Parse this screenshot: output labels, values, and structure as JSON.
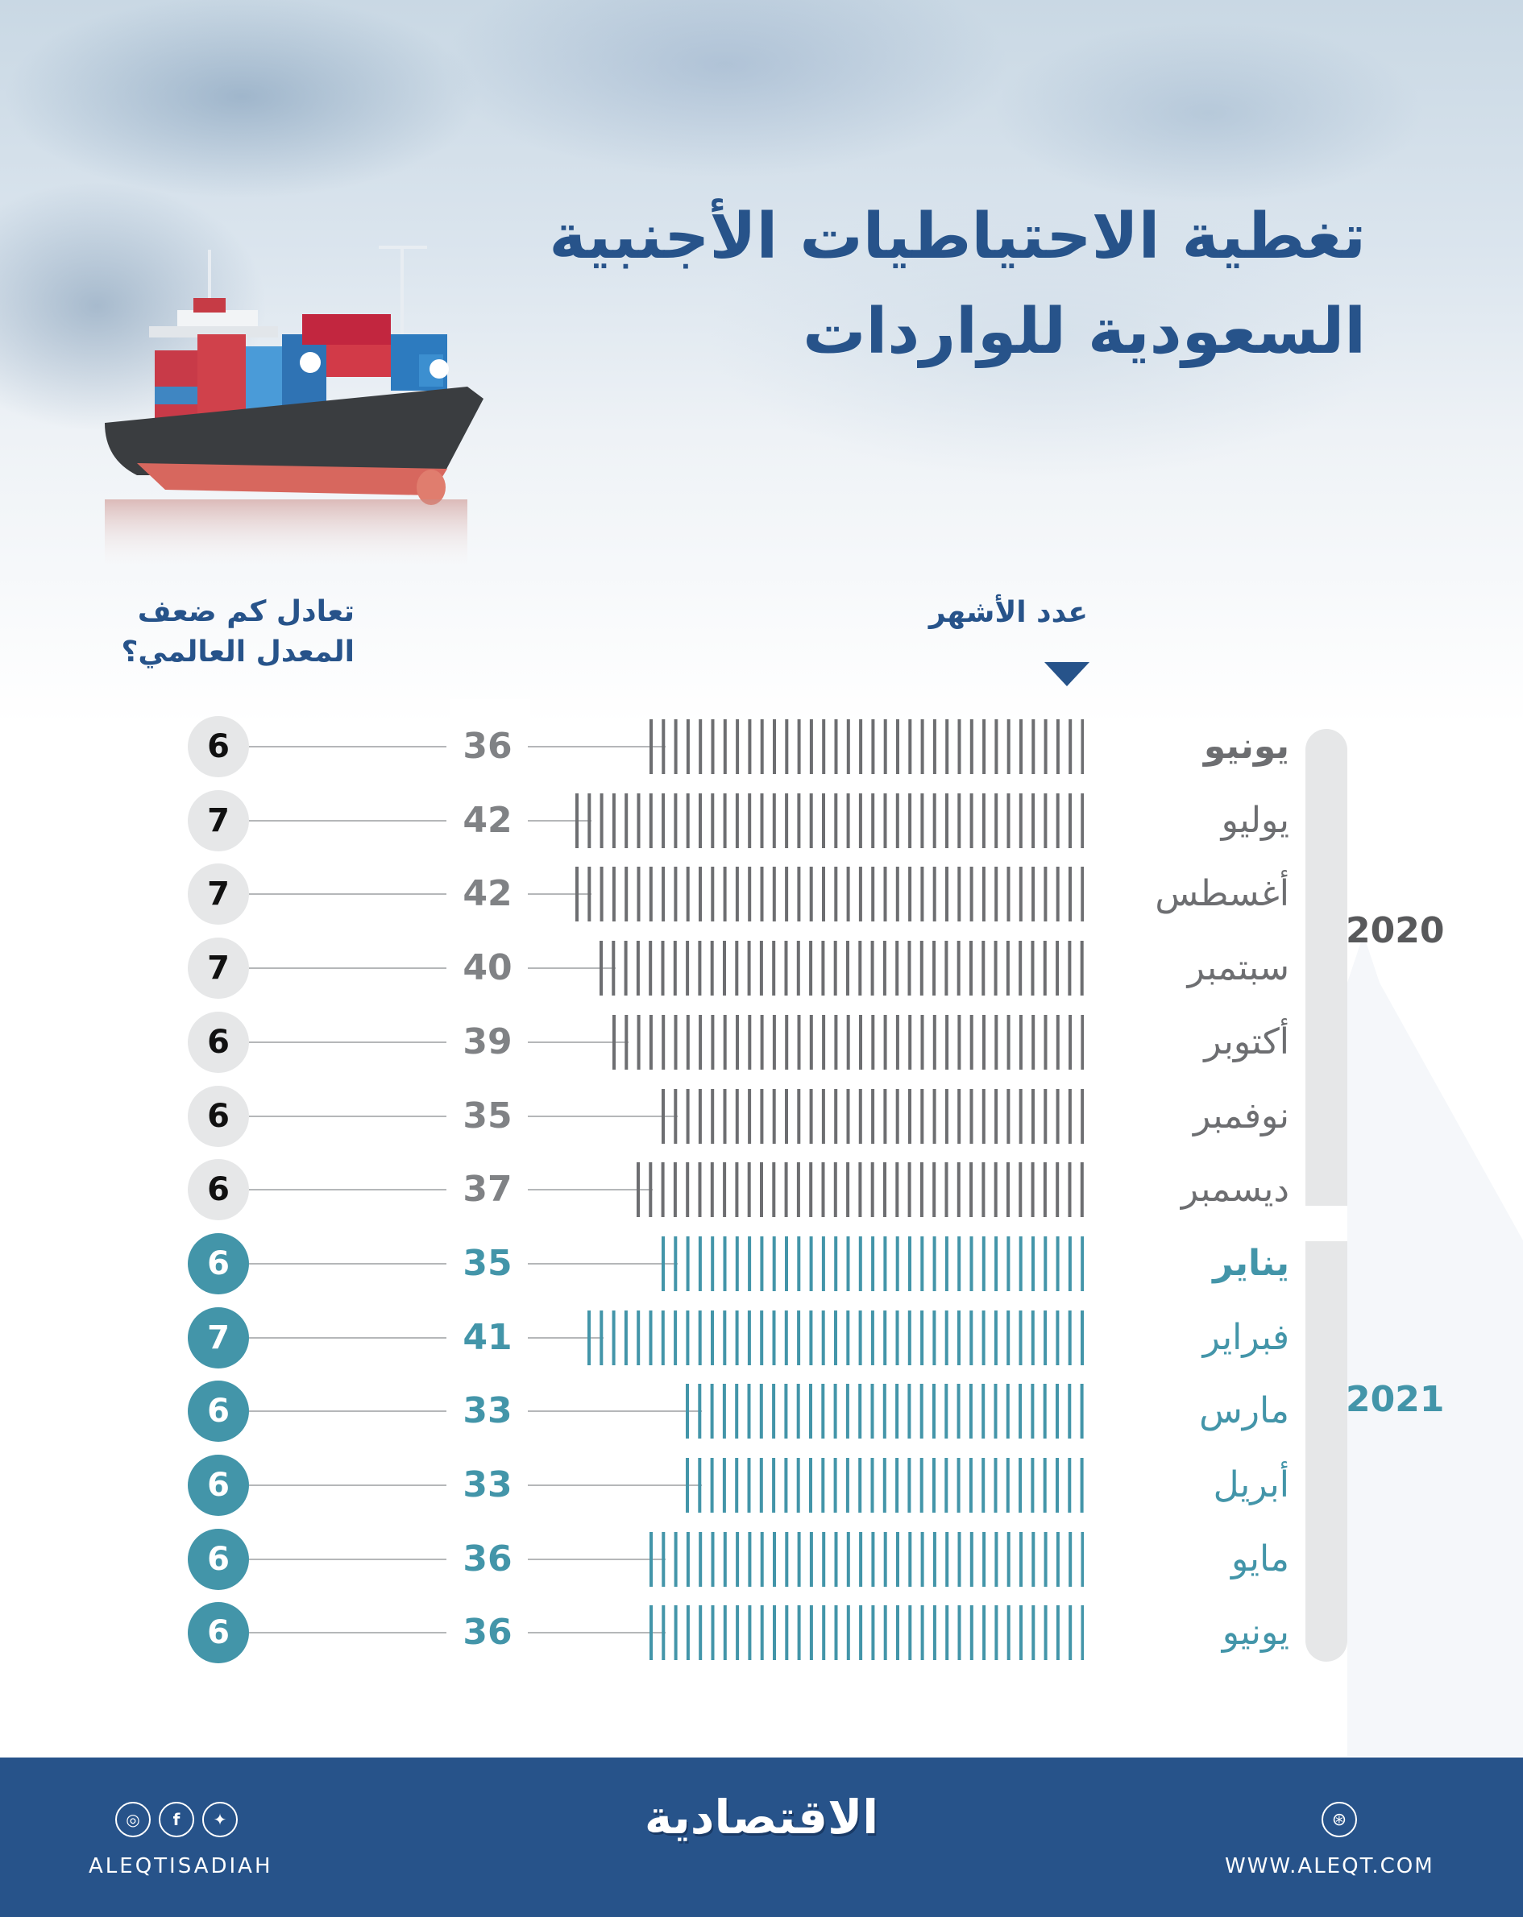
{
  "title": {
    "line1": "تغطية الاحتياطيات الأجنبية",
    "line2": "السعودية للواردات"
  },
  "headers": {
    "months_count": "عدد الأشهر",
    "times_global": "تعادل كم ضعف المعدل العالمي؟"
  },
  "years": {
    "y2020": "2020",
    "y2021": "2021"
  },
  "rows": [
    {
      "month": "يونيو",
      "year": "2020",
      "months": "36",
      "times": "6",
      "style": "gray",
      "bold": true
    },
    {
      "month": "يوليو",
      "year": "2020",
      "months": "42",
      "times": "7",
      "style": "gray",
      "bold": false
    },
    {
      "month": "أغسطس",
      "year": "2020",
      "months": "42",
      "times": "7",
      "style": "gray",
      "bold": false
    },
    {
      "month": "سبتمبر",
      "year": "2020",
      "months": "40",
      "times": "7",
      "style": "gray",
      "bold": false
    },
    {
      "month": "أكتوبر",
      "year": "2020",
      "months": "39",
      "times": "6",
      "style": "gray",
      "bold": false
    },
    {
      "month": "نوفمبر",
      "year": "2020",
      "months": "35",
      "times": "6",
      "style": "gray",
      "bold": false
    },
    {
      "month": "ديسمبر",
      "year": "2020",
      "months": "37",
      "times": "6",
      "style": "gray",
      "bold": false
    },
    {
      "month": "يناير",
      "year": "2021",
      "months": "35",
      "times": "6",
      "style": "teal",
      "bold": true
    },
    {
      "month": "فبراير",
      "year": "2021",
      "months": "41",
      "times": "7",
      "style": "teal",
      "bold": false
    },
    {
      "month": "مارس",
      "year": "2021",
      "months": "33",
      "times": "6",
      "style": "teal",
      "bold": false
    },
    {
      "month": "أبريل",
      "year": "2021",
      "months": "33",
      "times": "6",
      "style": "teal",
      "bold": false
    },
    {
      "month": "مايو",
      "year": "2021",
      "months": "36",
      "times": "6",
      "style": "teal",
      "bold": false
    },
    {
      "month": "يونيو",
      "year": "2021",
      "months": "36",
      "times": "6",
      "style": "teal",
      "bold": false
    }
  ],
  "colors": {
    "title_blue": "#27538a",
    "gray_bar": "#6d6e71",
    "teal": "#4395a9",
    "circle_gray": "#e6e7e8",
    "footer_blue": "#27538a"
  },
  "footer": {
    "handle": "ALEQTISADIAH",
    "logo": "الاقتصادية",
    "website": "WWW.ALEQT.COM",
    "social_icons": [
      "instagram-icon",
      "facebook-icon",
      "twitter-icon"
    ],
    "web_icon": "globe-icon"
  },
  "chart_data": {
    "type": "bar",
    "orientation": "horizontal",
    "title": "تغطية الاحتياطيات الأجنبية السعودية للواردات",
    "xlabel": "عدد الأشهر",
    "secondary_label": "تعادل كم ضعف المعدل العالمي؟",
    "categories": [
      "يونيو 2020",
      "يوليو 2020",
      "أغسطس 2020",
      "سبتمبر 2020",
      "أكتوبر 2020",
      "نوفمبر 2020",
      "ديسمبر 2020",
      "يناير 2021",
      "فبراير 2021",
      "مارس 2021",
      "أبريل 2021",
      "مايو 2021",
      "يونيو 2021"
    ],
    "series": [
      {
        "name": "عدد الأشهر",
        "values": [
          36,
          42,
          42,
          40,
          39,
          35,
          37,
          35,
          41,
          33,
          33,
          36,
          36
        ]
      },
      {
        "name": "تعادل كم ضعف المعدل العالمي",
        "values": [
          6,
          7,
          7,
          7,
          6,
          6,
          6,
          6,
          7,
          6,
          6,
          6,
          6
        ]
      }
    ],
    "groups": [
      {
        "name": "2020",
        "range": [
          0,
          6
        ]
      },
      {
        "name": "2021",
        "range": [
          7,
          12
        ]
      }
    ],
    "grid": false
  }
}
